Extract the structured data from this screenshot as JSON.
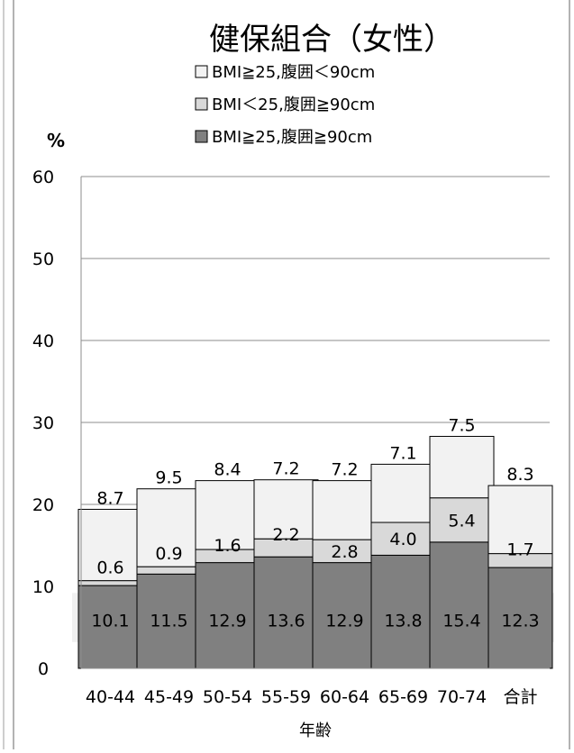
{
  "chart_data": {
    "type": "bar",
    "stacked": true,
    "title": "健保組合（女性）",
    "ylabel": "%",
    "xlabel": "年齢",
    "ylim": [
      0,
      60
    ],
    "yticks": [
      0,
      10,
      20,
      30,
      40,
      50,
      60
    ],
    "grid": true,
    "legend_position": "top",
    "categories": [
      "40-44",
      "45-49",
      "50-54",
      "55-59",
      "60-64",
      "65-69",
      "70-74",
      "合計"
    ],
    "series": [
      {
        "name": "BMI≧25,腹囲≧90cm",
        "color": "#808080",
        "values": [
          10.1,
          11.5,
          12.9,
          13.6,
          12.9,
          13.8,
          15.4,
          12.3
        ]
      },
      {
        "name": "BMI＜25,腹囲≧90cm",
        "color": "#d9d9d9",
        "values": [
          0.6,
          0.9,
          1.6,
          2.2,
          2.8,
          4.0,
          5.4,
          1.7
        ]
      },
      {
        "name": "BMI≧25,腹囲＜90cm",
        "color": "#f2f2f2",
        "values": [
          8.7,
          9.5,
          8.4,
          7.2,
          7.2,
          7.1,
          7.5,
          8.3
        ]
      }
    ],
    "legend_order": [
      2,
      1,
      0
    ]
  }
}
